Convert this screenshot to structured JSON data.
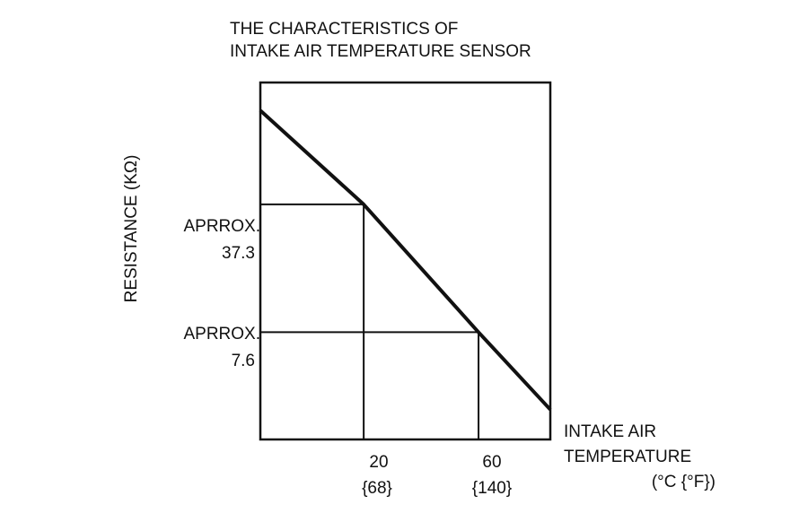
{
  "chart_data": {
    "type": "line",
    "title_lines": [
      "THE CHARACTERISTICS OF",
      "INTAKE AIR TEMPERATURE SENSOR"
    ],
    "ylabel": "RESISTANCE (KΩ)",
    "xlabel_lines": [
      "INTAKE AIR",
      "TEMPERATURE",
      "(°C {°F})"
    ],
    "xlim": [
      -16,
      85
    ],
    "log_y": true,
    "ylim": [
      2.0,
      170
    ],
    "series": [
      {
        "x": [
          -16,
          20,
          60,
          85
        ],
        "y": [
          120,
          37.3,
          7.6,
          2.9
        ]
      }
    ],
    "reference_points": [
      {
        "x": 20,
        "y": 37.3,
        "y_label_lines": [
          "APRROX.",
          "37.3"
        ],
        "x_label_lines": [
          "20",
          "{68}"
        ]
      },
      {
        "x": 60,
        "y": 7.6,
        "y_label_lines": [
          "APRROX.",
          "7.6"
        ],
        "x_label_lines": [
          "60",
          "{140}"
        ]
      }
    ],
    "grid": false,
    "legend": "none"
  }
}
